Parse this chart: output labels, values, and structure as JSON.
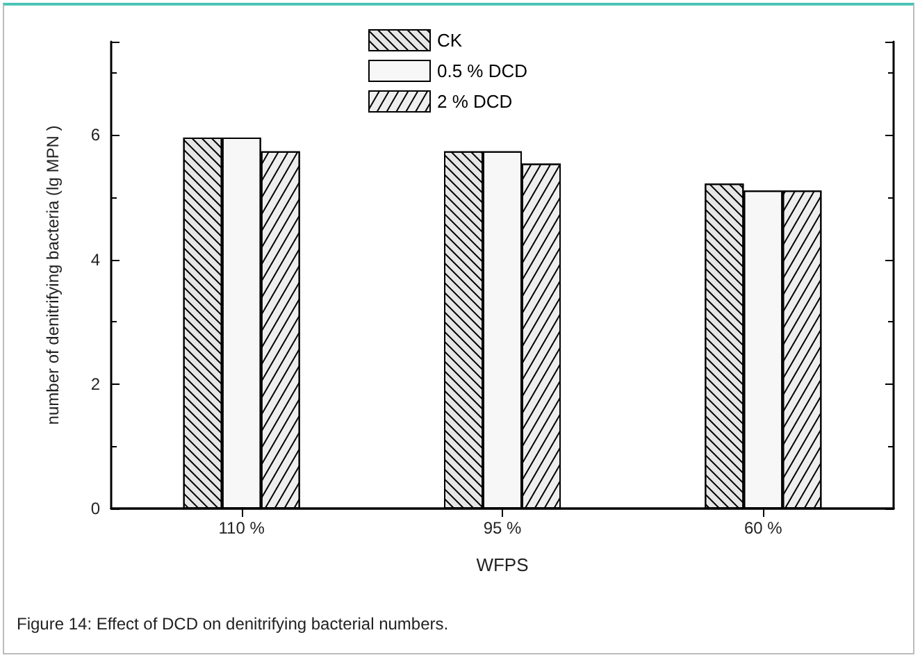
{
  "chart_data": {
    "type": "bar",
    "xlabel": "WFPS",
    "ylabel": "number of denitrifying bacteria (lg MPN )",
    "annotations": [
      "Figure 14: Effect of DCD on denitrifying bacterial numbers."
    ],
    "categories": [
      "110 %",
      "95 %",
      "60 %"
    ],
    "series": [
      {
        "name": "CK",
        "color": "#e6e6e6",
        "values": [
          5.96,
          5.74,
          5.22
        ]
      },
      {
        "name": "0.5 % DCD",
        "color": "#f7f7f7",
        "values": [
          5.96,
          5.74,
          5.11
        ]
      },
      {
        "name": "2 % DCD",
        "color": "#eeeeee",
        "values": [
          5.74,
          5.54,
          5.11
        ]
      }
    ],
    "ylim": [
      0,
      7.5
    ],
    "yticks": [
      0,
      2,
      4,
      6
    ],
    "grid": false,
    "legend": "top"
  }
}
